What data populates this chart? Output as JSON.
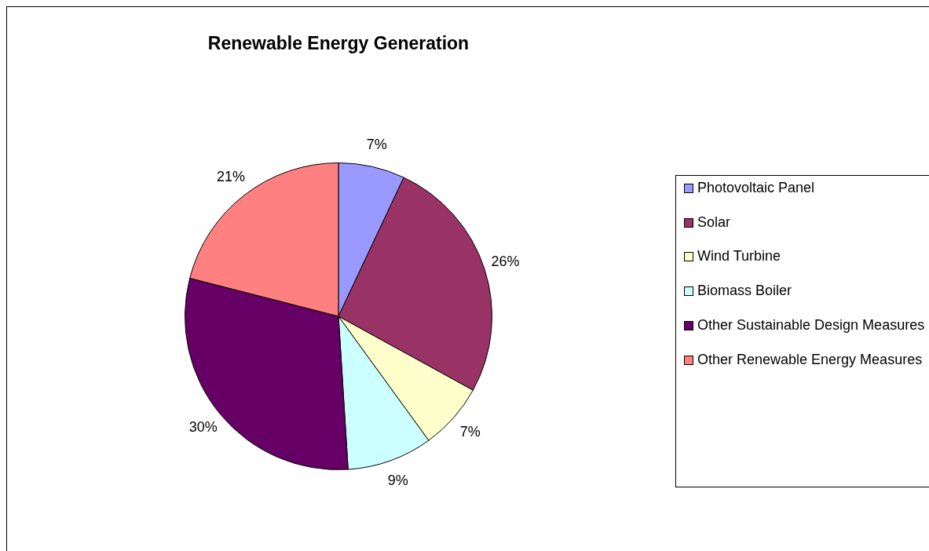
{
  "chart_data": {
    "type": "pie",
    "title": "Renewable Energy Generation",
    "categories": [
      "Photovoltaic Panel",
      "Solar",
      "Wind Turbine",
      "Biomass Boiler",
      "Other Sustainable Design Measures",
      "Other Renewable Energy Measures"
    ],
    "values": [
      7,
      26,
      7,
      9,
      30,
      21
    ],
    "value_labels": [
      "7%",
      "26%",
      "7%",
      "9%",
      "30%",
      "21%"
    ],
    "colors": [
      "#9999ff",
      "#993366",
      "#ffffcc",
      "#ccffff",
      "#660066",
      "#ff8080"
    ],
    "legend": "right"
  }
}
